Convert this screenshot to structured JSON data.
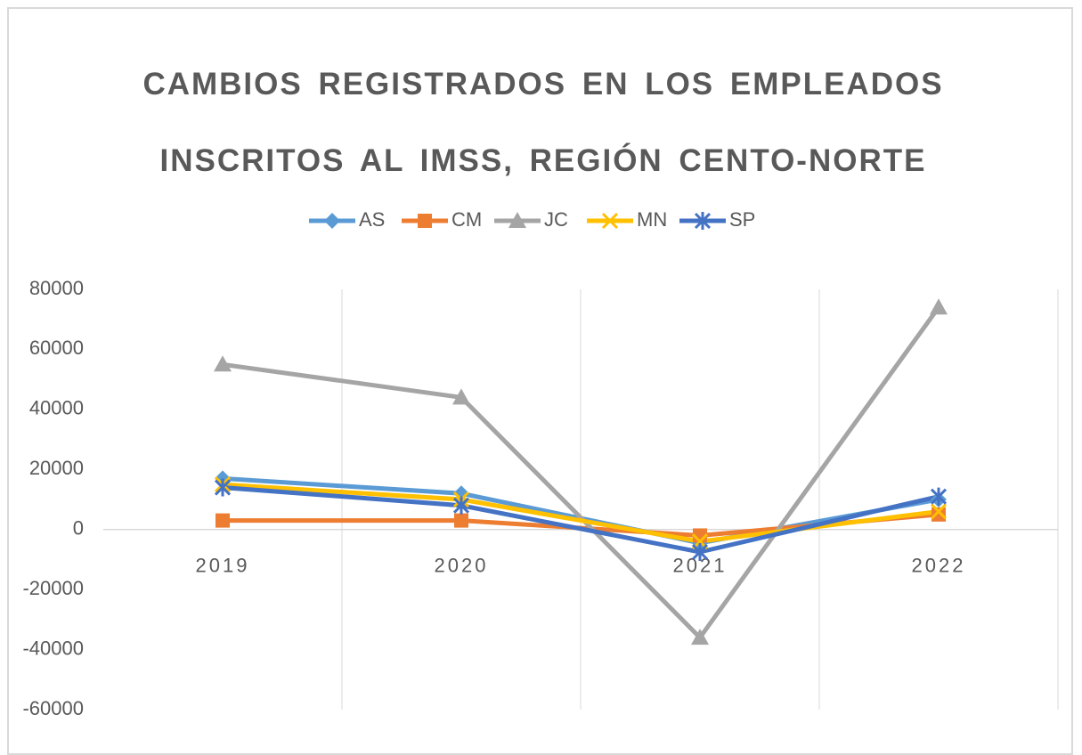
{
  "chart_data": {
    "type": "line",
    "title": "CAMBIOS REGISTRADOS EN LOS EMPLEADOS INSCRITOS AL IMSS, REGIÓN CENTO-NORTE",
    "categories": [
      "2019",
      "2020",
      "2021",
      "2022"
    ],
    "series": [
      {
        "name": "AS",
        "color": "#5b9bd5",
        "values": [
          17000,
          12000,
          -4500,
          10000
        ]
      },
      {
        "name": "CM",
        "color": "#ed7d31",
        "values": [
          3000,
          3000,
          -2000,
          5000
        ]
      },
      {
        "name": "JC",
        "color": "#a5a5a5",
        "values": [
          55000,
          44000,
          -36000,
          74000
        ]
      },
      {
        "name": "MN",
        "color": "#ffc000",
        "values": [
          15000,
          10000,
          -4000,
          6000
        ]
      },
      {
        "name": "SP",
        "color": "#4472c4",
        "values": [
          14000,
          8000,
          -7500,
          11000
        ]
      }
    ],
    "ylim": [
      -60000,
      80000
    ],
    "yticks": [
      -60000,
      -40000,
      -20000,
      0,
      20000,
      40000,
      60000,
      80000
    ],
    "grid": true,
    "legend": "top"
  }
}
